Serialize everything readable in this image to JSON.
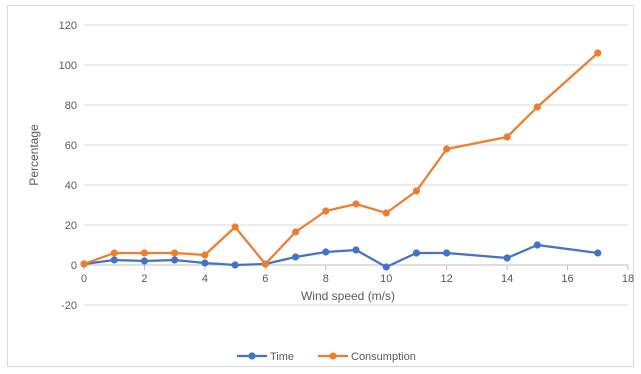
{
  "chart_data": {
    "type": "scatter",
    "title": "",
    "xlabel": "Wind speed (m/s)",
    "ylabel": "Percentage",
    "xlim": [
      0,
      18
    ],
    "ylim": [
      -20,
      120
    ],
    "x_ticks": [
      0,
      2,
      4,
      6,
      8,
      10,
      12,
      14,
      16,
      18
    ],
    "y_ticks": [
      -20,
      0,
      20,
      40,
      60,
      80,
      100,
      120
    ],
    "grid": "horizontal",
    "legend_position": "bottom",
    "x": [
      0,
      1,
      2,
      3,
      4,
      5,
      6,
      7,
      8,
      9,
      10,
      11,
      12,
      14,
      15,
      17
    ],
    "series": [
      {
        "name": "Time",
        "color": "#4472C4",
        "values": [
          0.5,
          2.5,
          2,
          2.5,
          1,
          0,
          0.5,
          4,
          6.5,
          7.5,
          -1,
          6,
          6,
          3.5,
          10,
          6
        ]
      },
      {
        "name": "Consumption",
        "color": "#ED7D31",
        "values": [
          0.5,
          6,
          6,
          6,
          5,
          19,
          0.5,
          16.5,
          27,
          30.5,
          26,
          37,
          58,
          64,
          79,
          106
        ]
      }
    ]
  }
}
